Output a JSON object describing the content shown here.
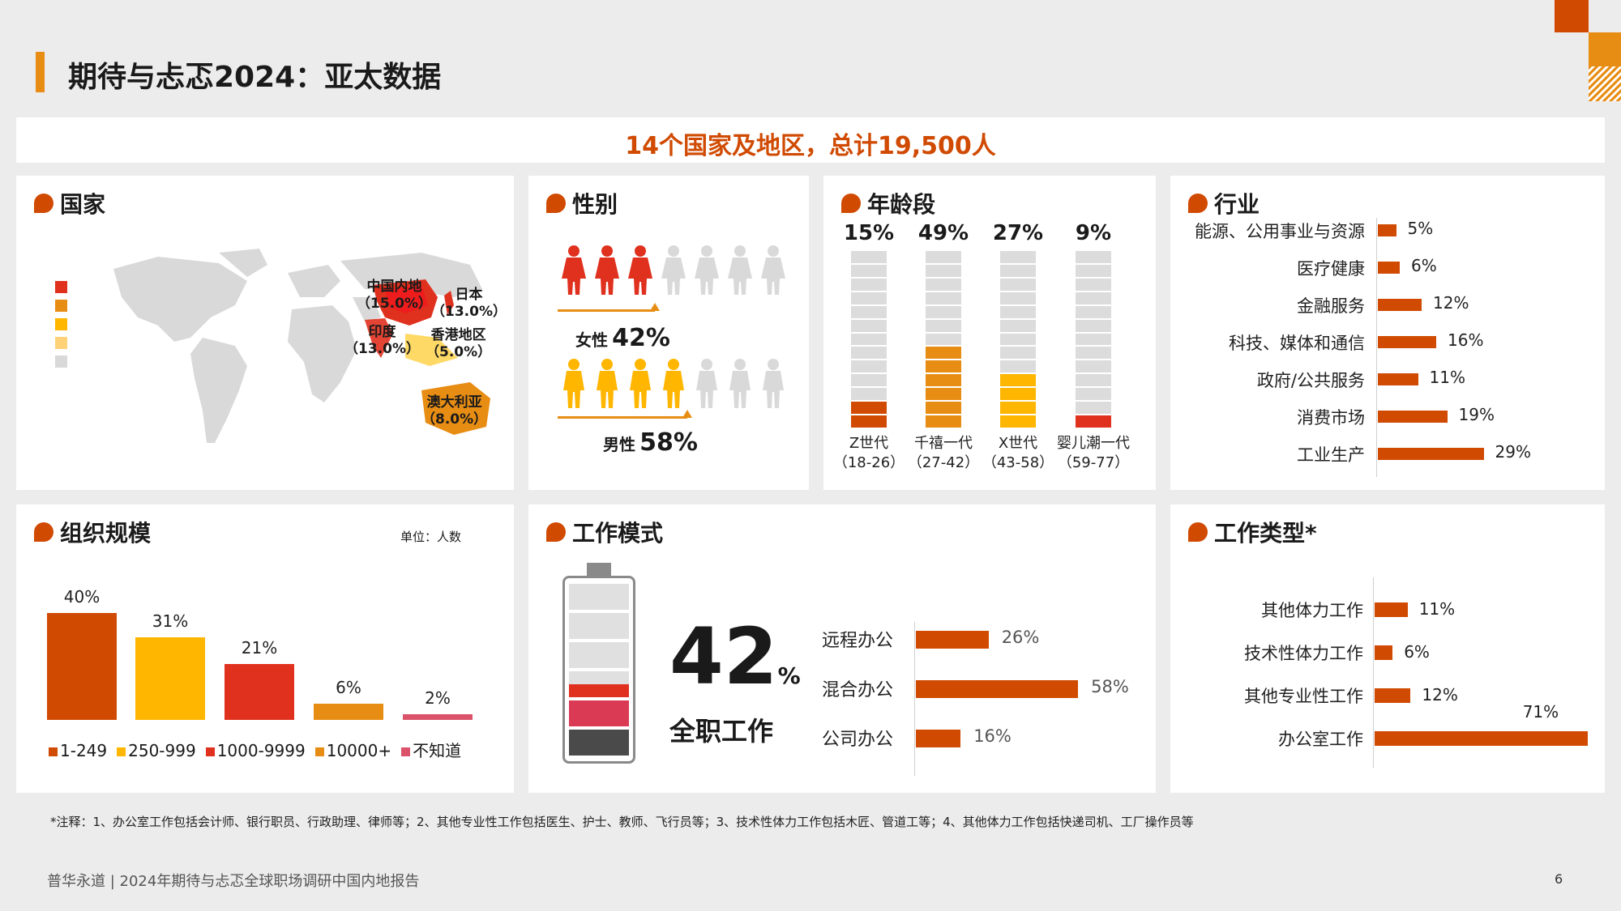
{
  "title": "期待与忐忑2024：亚太数据",
  "banner": "14个国家及地区，总计19,500人",
  "colors": {
    "orange": "#d04a02",
    "amber": "#e88d14",
    "yellow": "#ffb600",
    "red": "#e0301e",
    "rose": "#db536a",
    "grey": "#dcdcdc"
  },
  "country": {
    "title": "国家",
    "labels": {
      "china": "中国内地",
      "china_pct": "（15.0%）",
      "japan": "日本",
      "japan_pct": "（13.0%）",
      "india": "印度",
      "india_pct": "（13.0%）",
      "hk": "香港地区",
      "hk_pct": "（5.0%）",
      "au": "澳大利亚",
      "au_pct": "（8.0%）"
    }
  },
  "gender": {
    "title": "性别",
    "female_label": "女性",
    "female_value": "42%",
    "male_label": "男性",
    "male_value": "58%"
  },
  "age": {
    "title": "年龄段",
    "groups": [
      {
        "pct": "15%",
        "value": 15,
        "name": "Z世代",
        "range": "（18-26）",
        "color": "#d04a02"
      },
      {
        "pct": "49%",
        "value": 49,
        "name": "千禧一代",
        "range": "（27-42）",
        "color": "#e88d14"
      },
      {
        "pct": "27%",
        "value": 27,
        "name": "X世代",
        "range": "（43-58）",
        "color": "#ffb600"
      },
      {
        "pct": "9%",
        "value": 9,
        "name": "婴儿潮一代",
        "range": "（59-77）",
        "color": "#e0301e"
      }
    ]
  },
  "industry": {
    "title": "行业",
    "rows": [
      {
        "label": "能源、公用事业与资源",
        "value": 5,
        "text": "5%"
      },
      {
        "label": "医疗健康",
        "value": 6,
        "text": "6%"
      },
      {
        "label": "金融服务",
        "value": 12,
        "text": "12%"
      },
      {
        "label": "科技、媒体和通信",
        "value": 16,
        "text": "16%"
      },
      {
        "label": "政府/公共服务",
        "value": 11,
        "text": "11%"
      },
      {
        "label": "消费市场",
        "value": 19,
        "text": "19%"
      },
      {
        "label": "工业生产",
        "value": 29,
        "text": "29%"
      }
    ]
  },
  "org": {
    "title": "组织规模",
    "unit": "单位：人数",
    "bars": [
      {
        "label": "1-249",
        "value": 40,
        "text": "40%",
        "color": "#d04a02"
      },
      {
        "label": "250-999",
        "value": 31,
        "text": "31%",
        "color": "#ffb600"
      },
      {
        "label": "1000-9999",
        "value": 21,
        "text": "21%",
        "color": "#e0301e"
      },
      {
        "label": "10000+",
        "value": 6,
        "text": "6%",
        "color": "#e88d14"
      },
      {
        "label": "不知道",
        "value": 2,
        "text": "2%",
        "color": "#db536a"
      }
    ]
  },
  "workmode": {
    "title": "工作模式",
    "big_number": "42",
    "big_unit": "%",
    "big_label": "全职工作",
    "rows": [
      {
        "label": "远程办公",
        "value": 26,
        "text": "26%"
      },
      {
        "label": "混合办公",
        "value": 58,
        "text": "58%"
      },
      {
        "label": "公司办公",
        "value": 16,
        "text": "16%"
      }
    ]
  },
  "worktype": {
    "title": "工作类型*",
    "rows": [
      {
        "label": "其他体力工作",
        "value": 11,
        "text": "11%"
      },
      {
        "label": "技术性体力工作",
        "value": 6,
        "text": "6%"
      },
      {
        "label": "其他专业性工作",
        "value": 12,
        "text": "12%"
      },
      {
        "label": "办公室工作",
        "value": 71,
        "text": "71%"
      }
    ]
  },
  "footnote": "*注释：1、办公室工作包括会计师、银行职员、行政助理、律师等；2、其他专业性工作包括医生、护士、教师、飞行员等；3、技术性体力工作包括木匠、管道工等；4、其他体力工作包括快递司机、工厂操作员等",
  "footer": "普华永道 | 2024年期待与忐忑全球职场调研中国内地报告",
  "page_number": "6"
}
